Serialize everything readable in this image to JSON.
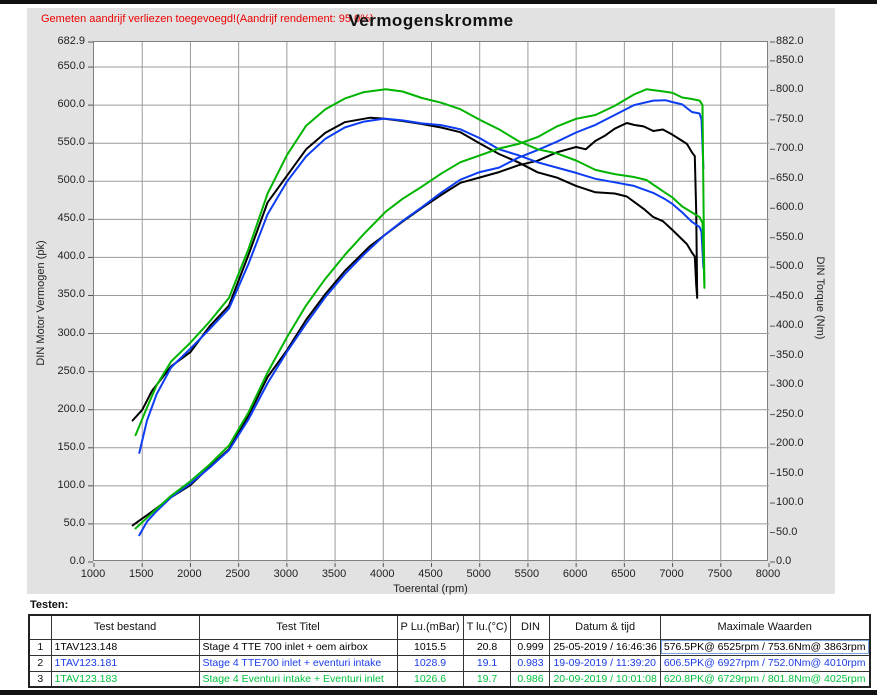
{
  "chart_data": {
    "type": "line",
    "title": "Vermogenskromme",
    "annotation": "Gemeten aandrijf verliezen toegevoegd!(Aandrijf rendement: 95.0%)",
    "x_axis": {
      "label": "Toerental (rpm)",
      "min": 1000,
      "max": 8000,
      "ticks": [
        1000,
        1500,
        2000,
        2500,
        3000,
        3500,
        4000,
        4500,
        5000,
        5500,
        6000,
        6500,
        7000,
        7500,
        8000
      ]
    },
    "y_left": {
      "label": "DIN Motor Vermogen (pk)",
      "min": 0,
      "max": 682.9,
      "ticks": [
        682.9,
        650,
        600,
        550,
        500,
        450,
        400,
        350,
        300,
        250,
        200,
        150,
        100,
        50,
        0
      ]
    },
    "y_right": {
      "label": "DIN Torque (Nm)",
      "min": 0,
      "max": 882,
      "ticks": [
        882,
        850,
        800,
        750,
        700,
        650,
        600,
        550,
        500,
        450,
        400,
        350,
        300,
        250,
        200,
        150,
        100,
        50,
        0
      ]
    },
    "grid": {
      "v_lines": [
        1500,
        2000,
        2500,
        3000,
        3500,
        4000,
        4500,
        5000,
        5500,
        6000,
        6500,
        7000,
        7500
      ],
      "h_lines": [
        50,
        100,
        150,
        200,
        250,
        300,
        350,
        400,
        450,
        500,
        550,
        600,
        650
      ],
      "color": "#9a9a9a"
    },
    "series": [
      {
        "id": "power-test1",
        "test": "1TAV123.148",
        "unit": "pk",
        "axis": "left",
        "color": "#000000",
        "points": [
          [
            1400,
            48
          ],
          [
            1500,
            57
          ],
          [
            1600,
            66
          ],
          [
            1800,
            85
          ],
          [
            2000,
            101
          ],
          [
            2200,
            125
          ],
          [
            2400,
            148
          ],
          [
            2600,
            192
          ],
          [
            2800,
            243
          ],
          [
            3000,
            278
          ],
          [
            3200,
            318
          ],
          [
            3400,
            352
          ],
          [
            3600,
            382
          ],
          [
            3863,
            415
          ],
          [
            4000,
            428
          ],
          [
            4200,
            447
          ],
          [
            4400,
            465
          ],
          [
            4600,
            482
          ],
          [
            4800,
            498
          ],
          [
            5000,
            505
          ],
          [
            5200,
            512
          ],
          [
            5400,
            521
          ],
          [
            5600,
            527
          ],
          [
            5800,
            538
          ],
          [
            6000,
            545
          ],
          [
            6100,
            542
          ],
          [
            6200,
            553
          ],
          [
            6300,
            560
          ],
          [
            6400,
            569
          ],
          [
            6525,
            576.5
          ],
          [
            6600,
            574
          ],
          [
            6700,
            572
          ],
          [
            6800,
            566
          ],
          [
            6900,
            568
          ],
          [
            7000,
            561
          ],
          [
            7100,
            553
          ],
          [
            7150,
            549
          ],
          [
            7200,
            538
          ],
          [
            7230,
            533
          ],
          [
            7245,
            460
          ],
          [
            7255,
            349
          ]
        ]
      },
      {
        "id": "torque-test1",
        "test": "1TAV123.148",
        "unit": "Nm",
        "axis": "right",
        "color": "#000000",
        "points": [
          [
            1400,
            240
          ],
          [
            1500,
            258
          ],
          [
            1600,
            290
          ],
          [
            1800,
            332
          ],
          [
            2000,
            356
          ],
          [
            2200,
            400
          ],
          [
            2400,
            435
          ],
          [
            2600,
            520
          ],
          [
            2800,
            610
          ],
          [
            3000,
            655
          ],
          [
            3200,
            700
          ],
          [
            3400,
            728
          ],
          [
            3600,
            746
          ],
          [
            3863,
            753.6
          ],
          [
            4000,
            752
          ],
          [
            4200,
            748
          ],
          [
            4400,
            743
          ],
          [
            4600,
            737
          ],
          [
            4800,
            729
          ],
          [
            5000,
            710
          ],
          [
            5200,
            692
          ],
          [
            5400,
            678
          ],
          [
            5600,
            661
          ],
          [
            5800,
            652
          ],
          [
            6000,
            638
          ],
          [
            6200,
            627
          ],
          [
            6400,
            625
          ],
          [
            6525,
            620
          ],
          [
            6700,
            599
          ],
          [
            6800,
            585
          ],
          [
            6900,
            578
          ],
          [
            7000,
            563
          ],
          [
            7100,
            547
          ],
          [
            7150,
            539
          ],
          [
            7200,
            525
          ],
          [
            7230,
            518
          ],
          [
            7245,
            470
          ],
          [
            7255,
            448
          ]
        ]
      },
      {
        "id": "power-test2",
        "test": "1TAV123.181",
        "unit": "pk",
        "axis": "left",
        "color": "#0d3df2",
        "points": [
          [
            1470,
            35
          ],
          [
            1550,
            53
          ],
          [
            1650,
            67
          ],
          [
            1800,
            85
          ],
          [
            2000,
            103
          ],
          [
            2200,
            124
          ],
          [
            2400,
            147
          ],
          [
            2600,
            187
          ],
          [
            2800,
            235
          ],
          [
            3000,
            276
          ],
          [
            3200,
            313
          ],
          [
            3400,
            348
          ],
          [
            3600,
            378
          ],
          [
            3800,
            404
          ],
          [
            4010,
            429
          ],
          [
            4200,
            448
          ],
          [
            4400,
            466
          ],
          [
            4600,
            485
          ],
          [
            4800,
            502
          ],
          [
            5000,
            512
          ],
          [
            5200,
            518
          ],
          [
            5400,
            531
          ],
          [
            5600,
            541
          ],
          [
            5800,
            552
          ],
          [
            6000,
            564
          ],
          [
            6200,
            574
          ],
          [
            6400,
            587
          ],
          [
            6600,
            600
          ],
          [
            6800,
            606
          ],
          [
            6927,
            606.5
          ],
          [
            7000,
            604
          ],
          [
            7100,
            601
          ],
          [
            7200,
            591
          ],
          [
            7280,
            589
          ],
          [
            7300,
            581
          ],
          [
            7320,
            517
          ]
        ]
      },
      {
        "id": "torque-test2",
        "test": "1TAV123.181",
        "unit": "Nm",
        "axis": "right",
        "color": "#0d3df2",
        "points": [
          [
            1470,
            185
          ],
          [
            1550,
            240
          ],
          [
            1650,
            285
          ],
          [
            1800,
            330
          ],
          [
            2000,
            362
          ],
          [
            2200,
            395
          ],
          [
            2400,
            430
          ],
          [
            2600,
            505
          ],
          [
            2800,
            590
          ],
          [
            3000,
            645
          ],
          [
            3200,
            688
          ],
          [
            3400,
            718
          ],
          [
            3600,
            737
          ],
          [
            3800,
            747
          ],
          [
            4010,
            752
          ],
          [
            4200,
            749
          ],
          [
            4400,
            744
          ],
          [
            4600,
            741
          ],
          [
            4800,
            734
          ],
          [
            5000,
            719
          ],
          [
            5200,
            700
          ],
          [
            5400,
            690
          ],
          [
            5600,
            678
          ],
          [
            5800,
            669
          ],
          [
            6000,
            660
          ],
          [
            6200,
            650
          ],
          [
            6400,
            644
          ],
          [
            6600,
            638
          ],
          [
            6800,
            626
          ],
          [
            6927,
            615
          ],
          [
            7000,
            607
          ],
          [
            7100,
            593
          ],
          [
            7200,
            577
          ],
          [
            7280,
            568
          ],
          [
            7300,
            560
          ],
          [
            7320,
            499
          ]
        ]
      },
      {
        "id": "power-test3",
        "test": "1TAV123.183",
        "unit": "pk",
        "axis": "left",
        "color": "#00b400",
        "points": [
          [
            1430,
            44
          ],
          [
            1550,
            58
          ],
          [
            1650,
            70
          ],
          [
            1800,
            87
          ],
          [
            2000,
            106
          ],
          [
            2200,
            128
          ],
          [
            2400,
            153
          ],
          [
            2600,
            196
          ],
          [
            2800,
            249
          ],
          [
            3000,
            295
          ],
          [
            3200,
            337
          ],
          [
            3400,
            372
          ],
          [
            3600,
            403
          ],
          [
            3800,
            431
          ],
          [
            4025,
            460
          ],
          [
            4200,
            477
          ],
          [
            4400,
            493
          ],
          [
            4600,
            510
          ],
          [
            4800,
            525
          ],
          [
            5000,
            534
          ],
          [
            5200,
            543
          ],
          [
            5400,
            549
          ],
          [
            5600,
            558
          ],
          [
            5800,
            572
          ],
          [
            6000,
            582
          ],
          [
            6200,
            587
          ],
          [
            6400,
            599
          ],
          [
            6600,
            614
          ],
          [
            6729,
            620.8
          ],
          [
            6900,
            618
          ],
          [
            7000,
            616
          ],
          [
            7100,
            610
          ],
          [
            7200,
            608
          ],
          [
            7280,
            606
          ],
          [
            7310,
            600
          ],
          [
            7330,
            360
          ]
        ]
      },
      {
        "id": "torque-test3",
        "test": "1TAV123.183",
        "unit": "Nm",
        "axis": "right",
        "color": "#00b400",
        "points": [
          [
            1430,
            215
          ],
          [
            1550,
            262
          ],
          [
            1650,
            300
          ],
          [
            1800,
            340
          ],
          [
            2000,
            372
          ],
          [
            2200,
            408
          ],
          [
            2400,
            448
          ],
          [
            2600,
            530
          ],
          [
            2800,
            625
          ],
          [
            3000,
            690
          ],
          [
            3200,
            740
          ],
          [
            3400,
            768
          ],
          [
            3600,
            786
          ],
          [
            3800,
            797
          ],
          [
            4025,
            801.8
          ],
          [
            4200,
            798
          ],
          [
            4400,
            787
          ],
          [
            4600,
            779
          ],
          [
            4800,
            768
          ],
          [
            5000,
            750
          ],
          [
            5200,
            734
          ],
          [
            5400,
            714
          ],
          [
            5600,
            700
          ],
          [
            5800,
            693
          ],
          [
            6000,
            681
          ],
          [
            6200,
            665
          ],
          [
            6400,
            658
          ],
          [
            6600,
            653
          ],
          [
            6729,
            648
          ],
          [
            6900,
            629
          ],
          [
            7000,
            618
          ],
          [
            7100,
            603
          ],
          [
            7200,
            593
          ],
          [
            7280,
            585
          ],
          [
            7310,
            575
          ],
          [
            7330,
            471
          ]
        ]
      }
    ]
  },
  "table": {
    "heading": "Testen:",
    "column_keys": [
      "row-number",
      "test-bestand",
      "test-titel",
      "p-lu",
      "t-lu",
      "din",
      "datum-tijd",
      "maximale-waarden"
    ],
    "headers": [
      "",
      "Test bestand",
      "Test Titel",
      "P Lu.(mBar)",
      "T lu.(°C)",
      "DIN",
      "Datum & tijd",
      "Maximale Waarden"
    ],
    "rows": [
      {
        "color": "#000000",
        "selected_cell": 7,
        "cells": [
          "1",
          "1TAV123.148",
          "Stage 4 TTE 700  inlet + oem airbox",
          "1015.5",
          "20.8",
          "0.999",
          "25-05-2019 / 16:46:36",
          "576.5PK@ 6525rpm / 753.6Nm@ 3863rpm"
        ]
      },
      {
        "color": "#1a3ce8",
        "selected_cell": -1,
        "cells": [
          "2",
          "1TAV123.181",
          "Stage 4 TTE700 inlet + eventuri intake",
          "1028.9",
          "19.1",
          "0.983",
          "19-09-2019 / 11:39:20",
          "606.5PK@ 6927rpm / 752.0Nm@ 4010rpm"
        ]
      },
      {
        "color": "#00c23c",
        "selected_cell": -1,
        "cells": [
          "3",
          "1TAV123.183",
          "Stage 4 Eventuri intake + Eventuri inlet",
          "1026.6",
          "19.7",
          "0.986",
          "20-09-2019 / 10:01:08",
          "620.8PK@ 6729rpm / 801.8Nm@ 4025rpm"
        ]
      }
    ]
  }
}
